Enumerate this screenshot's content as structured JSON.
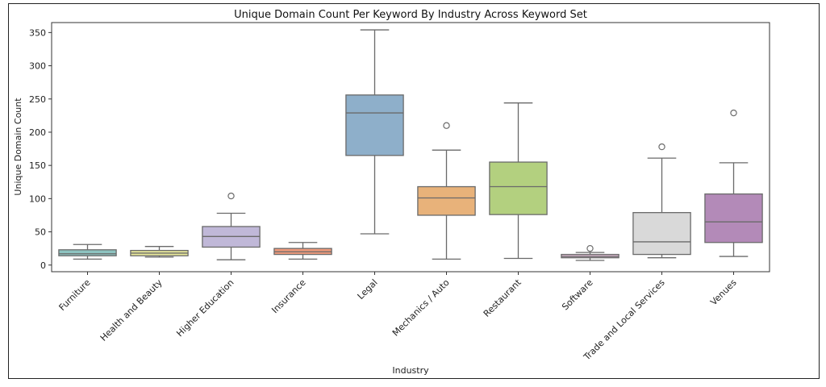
{
  "chart_data": {
    "type": "box",
    "title": "Unique Domain Count Per Keyword By Industry Across Keyword Set",
    "xlabel": "Industry",
    "ylabel": "Unique Domain Count",
    "ylim": [
      -10,
      365
    ],
    "yticks": [
      0,
      50,
      100,
      150,
      200,
      250,
      300,
      350
    ],
    "grid": false,
    "categories": [
      "Furniture",
      "Health and Beauty",
      "Higher Education",
      "Insurance",
      "Legal",
      "Mechanics / Auto",
      "Restaurant",
      "Software",
      "Trade and Local Services",
      "Venues"
    ],
    "boxes": [
      {
        "category": "Furniture",
        "whisker_low": 9,
        "q1": 14,
        "median": 17,
        "q3": 23,
        "whisker_high": 31,
        "outliers": [],
        "color": "#8dc3c0"
      },
      {
        "category": "Health and Beauty",
        "whisker_low": 12,
        "q1": 14,
        "median": 18,
        "q3": 22,
        "whisker_high": 28,
        "outliers": [],
        "color": "#e8e89a"
      },
      {
        "category": "Higher Education",
        "whisker_low": 8,
        "q1": 27,
        "median": 43,
        "q3": 58,
        "whisker_high": 78,
        "outliers": [
          104
        ],
        "color": "#c0b8d8"
      },
      {
        "category": "Insurance",
        "whisker_low": 9,
        "q1": 16,
        "median": 20,
        "q3": 25,
        "whisker_high": 34,
        "outliers": [],
        "color": "#ee9a7c"
      },
      {
        "category": "Legal",
        "whisker_low": 47,
        "q1": 165,
        "median": 229,
        "q3": 256,
        "whisker_high": 354,
        "outliers": [],
        "color": "#8eafca"
      },
      {
        "category": "Mechanics / Auto",
        "whisker_low": 9,
        "q1": 75,
        "median": 101,
        "q3": 118,
        "whisker_high": 173,
        "outliers": [
          210
        ],
        "color": "#e8b27a"
      },
      {
        "category": "Restaurant",
        "whisker_low": 10,
        "q1": 76,
        "median": 118,
        "q3": 155,
        "whisker_high": 244,
        "outliers": [],
        "color": "#b3d07f"
      },
      {
        "category": "Software",
        "whisker_low": 7,
        "q1": 11,
        "median": 13,
        "q3": 16,
        "whisker_high": 19,
        "outliers": [
          25
        ],
        "color": "#e4bfd8"
      },
      {
        "category": "Trade and Local Services",
        "whisker_low": 11,
        "q1": 16,
        "median": 35,
        "q3": 79,
        "whisker_high": 161,
        "outliers": [
          178
        ],
        "color": "#d9d9d9"
      },
      {
        "category": "Venues",
        "whisker_low": 13,
        "q1": 34,
        "median": 65,
        "q3": 107,
        "whisker_high": 154,
        "outliers": [
          229
        ],
        "color": "#b38ab8"
      }
    ]
  }
}
